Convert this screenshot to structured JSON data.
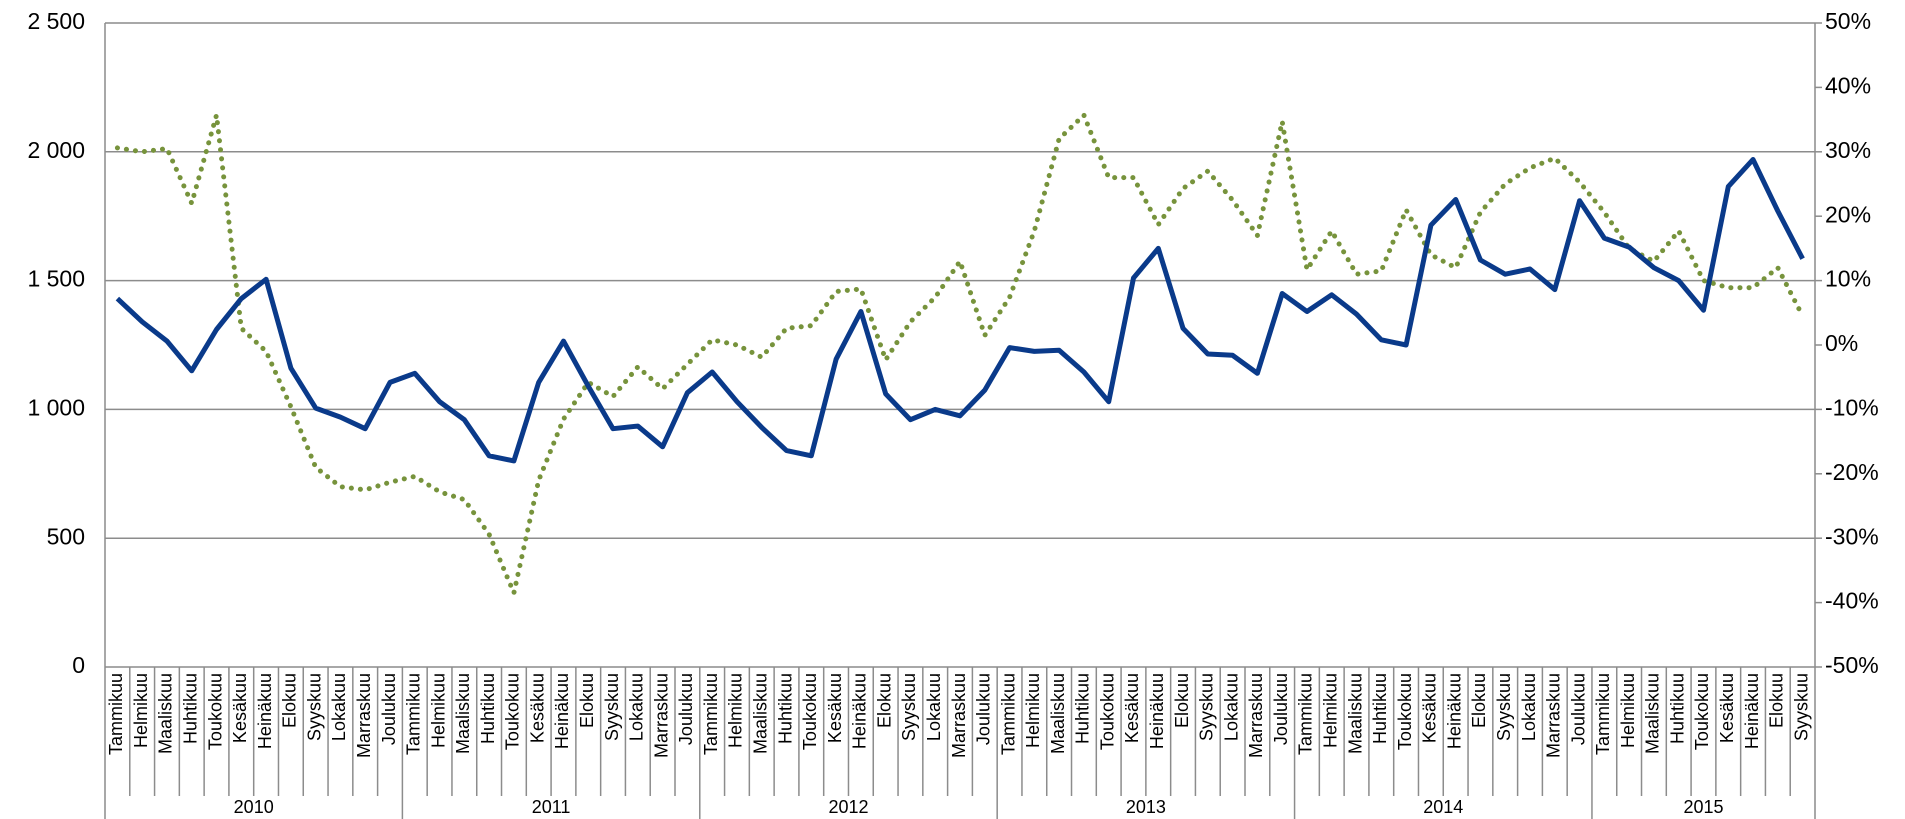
{
  "chart_data": {
    "type": "line",
    "groups": [
      {
        "label": "2010",
        "categories": [
          "Tammikuu",
          "Helmikuu",
          "Maaliskuu",
          "Huhtikuu",
          "Toukokuu",
          "Kesäkuu",
          "Heinäkuu",
          "Elokuu",
          "Syyskuu",
          "Lokakuu",
          "Marraskuu",
          "Joulukuu"
        ]
      },
      {
        "label": "2011",
        "categories": [
          "Tammikuu",
          "Helmikuu",
          "Maaliskuu",
          "Huhtikuu",
          "Toukokuu",
          "Kesäkuu",
          "Heinäkuu",
          "Elokuu",
          "Syyskuu",
          "Lokakuu",
          "Marraskuu",
          "Joulukuu"
        ]
      },
      {
        "label": "2012",
        "categories": [
          "Tammikuu",
          "Helmikuu",
          "Maaliskuu",
          "Huhtikuu",
          "Toukokuu",
          "Kesäkuu",
          "Heinäkuu",
          "Elokuu",
          "Syyskuu",
          "Lokakuu",
          "Marraskuu",
          "Joulukuu"
        ]
      },
      {
        "label": "2013",
        "categories": [
          "Tammikuu",
          "Helmikuu",
          "Maaliskuu",
          "Huhtikuu",
          "Toukokuu",
          "Kesäkuu",
          "Heinäkuu",
          "Elokuu",
          "Syyskuu",
          "Lokakuu",
          "Marraskuu",
          "Joulukuu"
        ]
      },
      {
        "label": "2014",
        "categories": [
          "Tammikuu",
          "Helmikuu",
          "Maaliskuu",
          "Huhtikuu",
          "Toukokuu",
          "Kesäkuu",
          "Heinäkuu",
          "Elokuu",
          "Syyskuu",
          "Lokakuu",
          "Marraskuu",
          "Joulukuu"
        ]
      },
      {
        "label": "2015",
        "categories": [
          "Tammikuu",
          "Helmikuu",
          "Maaliskuu",
          "Huhtikuu",
          "Toukokuu",
          "Kesäkuu",
          "Heinäkuu",
          "Elokuu",
          "Syyskuu"
        ]
      }
    ],
    "series": [
      {
        "color": "#0a3a8a",
        "style": "solid",
        "values": [
          1430,
          1340,
          1265,
          1150,
          1310,
          1430,
          1505,
          1160,
          1005,
          970,
          925,
          1105,
          1140,
          1030,
          960,
          820,
          800,
          1105,
          1265,
          1090,
          925,
          935,
          855,
          1065,
          1145,
          1030,
          930,
          840,
          820,
          1195,
          1380,
          1060,
          960,
          1000,
          975,
          1075,
          1240,
          1225,
          1230,
          1145,
          1030,
          1510,
          1625,
          1315,
          1215,
          1210,
          1140,
          1450,
          1380,
          1445,
          1370,
          1270,
          1250,
          1715,
          1815,
          1580,
          1525,
          1545,
          1465,
          1810,
          1665,
          1630,
          1550,
          1500,
          1385,
          1865,
          1970,
          1770,
          1585
        ]
      },
      {
        "color": "#77933c",
        "style": "dotted",
        "axis": "y2",
        "values": [
          30.6,
          30,
          30.5,
          22,
          35.7,
          2.6,
          -1,
          -9.6,
          -19,
          -22,
          -22.5,
          -21.3,
          -20.4,
          -22.8,
          -24,
          -29.4,
          -38.5,
          -21,
          -11.5,
          -5.8,
          -8,
          -3.4,
          -6.8,
          -3,
          0.8,
          0,
          -1.9,
          2.6,
          3,
          8.3,
          8.7,
          -2.3,
          3.6,
          7.4,
          13,
          1.5,
          7.4,
          17.7,
          32,
          35.7,
          26,
          26,
          18.7,
          24.3,
          27,
          22.5,
          17,
          34.7,
          11.7,
          17.7,
          11,
          11.5,
          21,
          14,
          12,
          20.6,
          25,
          27.5,
          29,
          25.3,
          20.6,
          15,
          13,
          17.7,
          10,
          8.9,
          8.9,
          12,
          4.5
        ]
      }
    ],
    "ylim": [
      0,
      2500
    ],
    "yticks": [
      {
        "value": 0,
        "label": "0"
      },
      {
        "value": 500,
        "label": "500"
      },
      {
        "value": 1000,
        "label": "1 000"
      },
      {
        "value": 1500,
        "label": "1 500"
      },
      {
        "value": 2000,
        "label": "2 000"
      },
      {
        "value": 2500,
        "label": "2 500"
      }
    ],
    "y2lim": [
      -50,
      50
    ],
    "y2ticks": [
      {
        "value": -50,
        "label": "-50%"
      },
      {
        "value": -40,
        "label": "-40%"
      },
      {
        "value": -30,
        "label": "-30%"
      },
      {
        "value": -20,
        "label": "-20%"
      },
      {
        "value": -10,
        "label": "-10%"
      },
      {
        "value": 0,
        "label": "0%"
      },
      {
        "value": 10,
        "label": "10%"
      },
      {
        "value": 20,
        "label": "20%"
      },
      {
        "value": 30,
        "label": "30%"
      },
      {
        "value": 40,
        "label": "40%"
      },
      {
        "value": 50,
        "label": "50%"
      }
    ],
    "grid": true
  }
}
